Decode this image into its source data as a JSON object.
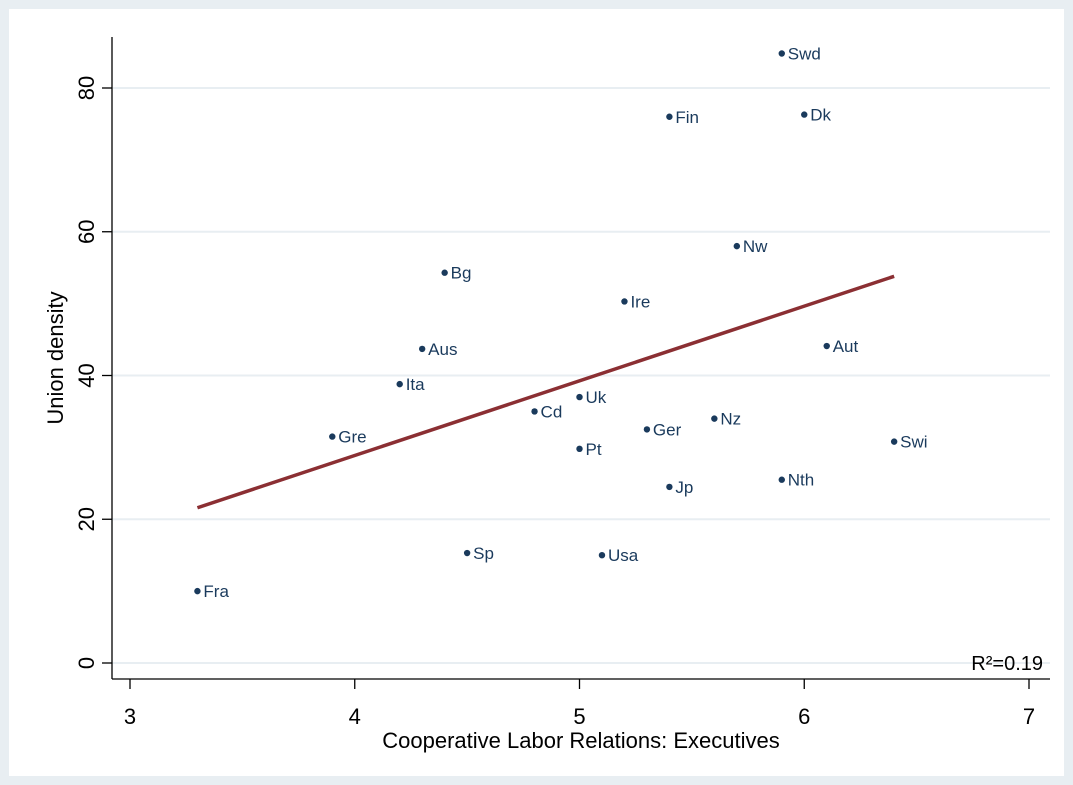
{
  "chart_data": {
    "type": "scatter",
    "xlabel": "Cooperative Labor Relations: Executives",
    "ylabel": "Union density",
    "xlim": [
      3,
      7
    ],
    "ylim": [
      0,
      85
    ],
    "x_ticks": [
      3,
      4,
      5,
      6,
      7
    ],
    "y_ticks": [
      0,
      20,
      40,
      60,
      80
    ],
    "grid": "horizontal",
    "annotation": "R²=0.19",
    "points": [
      {
        "label": "Swd",
        "x": 5.9,
        "y": 84.8
      },
      {
        "label": "Fin",
        "x": 5.4,
        "y": 76.0
      },
      {
        "label": "Dk",
        "x": 6.0,
        "y": 76.3
      },
      {
        "label": "Nw",
        "x": 5.7,
        "y": 58.0
      },
      {
        "label": "Bg",
        "x": 4.4,
        "y": 54.3
      },
      {
        "label": "Ire",
        "x": 5.2,
        "y": 50.3
      },
      {
        "label": "Aus",
        "x": 4.3,
        "y": 43.7
      },
      {
        "label": "Aut",
        "x": 6.1,
        "y": 44.1
      },
      {
        "label": "Ita",
        "x": 4.2,
        "y": 38.8
      },
      {
        "label": "Uk",
        "x": 5.0,
        "y": 37.0
      },
      {
        "label": "Cd",
        "x": 4.8,
        "y": 35.0
      },
      {
        "label": "Nz",
        "x": 5.6,
        "y": 34.0
      },
      {
        "label": "Ger",
        "x": 5.3,
        "y": 32.5
      },
      {
        "label": "Gre",
        "x": 3.9,
        "y": 31.5
      },
      {
        "label": "Swi",
        "x": 6.4,
        "y": 30.8
      },
      {
        "label": "Pt",
        "x": 5.0,
        "y": 29.8
      },
      {
        "label": "Nth",
        "x": 5.9,
        "y": 25.5
      },
      {
        "label": "Jp",
        "x": 5.4,
        "y": 24.5
      },
      {
        "label": "Sp",
        "x": 4.5,
        "y": 15.3
      },
      {
        "label": "Usa",
        "x": 5.1,
        "y": 15.0
      },
      {
        "label": "Fra",
        "x": 3.3,
        "y": 10.0
      }
    ],
    "fit_line": {
      "x": [
        3.3,
        6.4
      ],
      "y": [
        21.6,
        53.8
      ]
    }
  },
  "colors": {
    "outer_background": "#e8eef2",
    "plot_background": "#ffffff",
    "point": "#1a3a5c",
    "label": "#1a3a5c",
    "fit_line": "#8b2f33",
    "grid": "#e8eef2"
  }
}
